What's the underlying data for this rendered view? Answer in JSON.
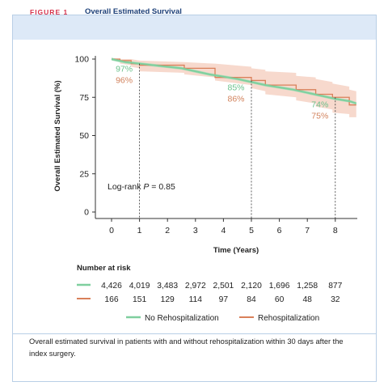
{
  "figure": {
    "label": "FIGURE 1",
    "title": "Overall Estimated Survival",
    "caption": "Overall estimated survival in patients with and without rehospitalization within 30 days after the index surgery."
  },
  "colors": {
    "no_rehosp": "#7fcf9e",
    "no_rehosp_ci": "#a9ddb8",
    "rehosp": "#d9805a",
    "rehosp_ci": "#f6d2c4",
    "no_rehosp_label": "#6bc18c",
    "rehosp_label": "#d2825c"
  },
  "chart_data": {
    "type": "line",
    "xlabel": "Time (Years)",
    "ylabel": "Overall Estimated Survival (%)",
    "xlim": [
      -0.5,
      8.75
    ],
    "ylim": [
      -2,
      102
    ],
    "xticks": [
      "0",
      "1",
      "2",
      "3",
      "4",
      "5",
      "6",
      "7",
      "8"
    ],
    "yticks": [
      "0",
      "25",
      "50",
      "75",
      "100"
    ],
    "annotation": "Log-rank ",
    "annotation_p": "P",
    "annotation_value": " = 0.85",
    "series": [
      {
        "name": "No Rehospitalization",
        "x": [
          0,
          0.25,
          0.5,
          1,
          1.5,
          2,
          2.5,
          3,
          3.5,
          4,
          4.5,
          5,
          5.5,
          6,
          6.5,
          7,
          7.5,
          8,
          8.5,
          8.75
        ],
        "values": [
          100,
          99,
          98,
          97,
          96,
          95,
          94,
          92,
          90,
          88.5,
          87,
          85,
          83,
          81.5,
          80,
          78,
          76,
          74,
          72.5,
          71
        ]
      },
      {
        "name": "Rehospitalization",
        "x": [
          0,
          0.3,
          0.3,
          0.7,
          0.7,
          1,
          1,
          2.6,
          2.6,
          3.7,
          3.7,
          5,
          5,
          5.5,
          5.5,
          6.6,
          6.6,
          7.3,
          7.3,
          7.9,
          7.9,
          8.5,
          8.5,
          8.75
        ],
        "values": [
          100,
          100,
          99,
          99,
          97,
          97,
          96,
          96,
          94,
          94,
          88,
          88,
          86,
          86,
          83,
          83,
          80,
          80,
          77,
          77,
          75,
          75,
          70,
          70
        ],
        "ci_upper": [
          100,
          100,
          100,
          100,
          100,
          99,
          99,
          98,
          98,
          97,
          97,
          95,
          94,
          93,
          92,
          91,
          89,
          88,
          87,
          85,
          84,
          82,
          80,
          79
        ],
        "ci_lower": [
          100,
          99,
          97,
          96,
          95,
          94,
          92,
          91,
          90,
          88,
          86,
          83,
          81,
          79,
          77,
          75,
          73,
          71,
          69,
          67,
          65,
          64,
          62,
          62
        ]
      }
    ],
    "landmarks": [
      {
        "x": 1,
        "no_rehosp_label": "97%",
        "rehosp_label": "96%",
        "line_top": 97
      },
      {
        "x": 5,
        "no_rehosp_label": "85%",
        "rehosp_label": "86%",
        "line_top": 86
      },
      {
        "x": 8,
        "no_rehosp_label": "74%",
        "rehosp_label": "75%",
        "line_top": 75
      }
    ],
    "risk_table": {
      "title": "Number at risk",
      "no_rehosp": [
        "4,426",
        "4,019",
        "3,483",
        "2,972",
        "2,501",
        "2,120",
        "1,696",
        "1,258",
        "877"
      ],
      "rehosp": [
        "166",
        "151",
        "129",
        "114",
        "97",
        "84",
        "60",
        "48",
        "32"
      ]
    },
    "legend": {
      "placement": "bottom-center",
      "items": [
        "No Rehospitalization",
        "Rehospitalization"
      ]
    }
  }
}
